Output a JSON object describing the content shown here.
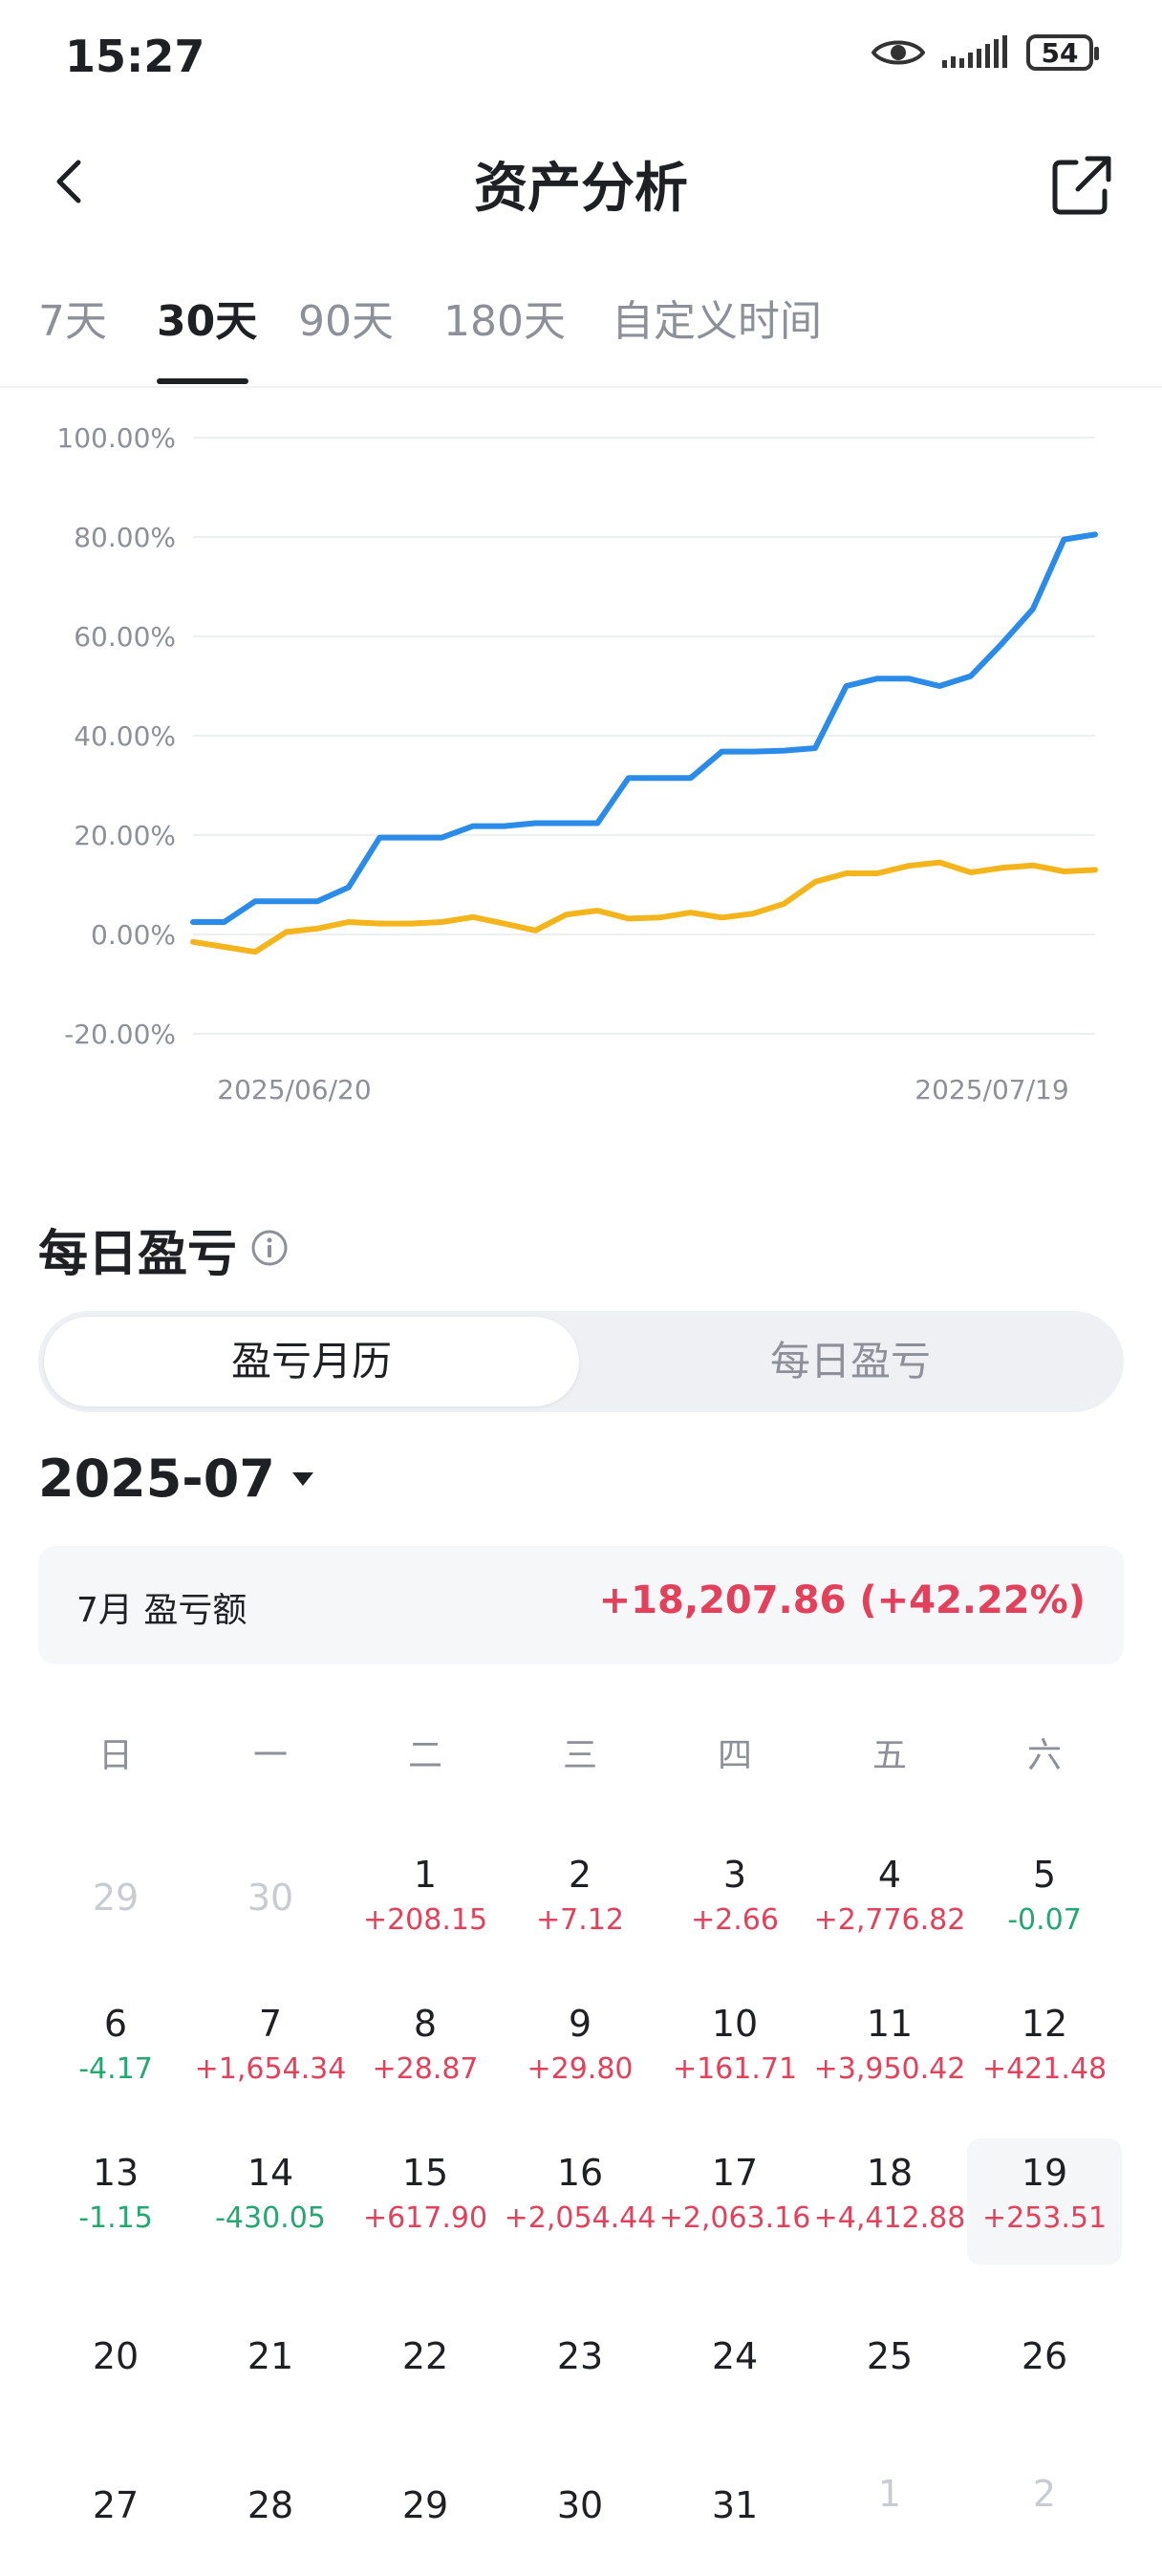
{
  "status": {
    "time": "15:27",
    "battery": "54"
  },
  "header": {
    "title": "资产分析"
  },
  "tabs": [
    {
      "label": "7天",
      "active": false
    },
    {
      "label": "30天",
      "active": true
    },
    {
      "label": "90天",
      "active": false
    },
    {
      "label": "180天",
      "active": false
    },
    {
      "label": "自定义时间",
      "active": false
    }
  ],
  "chart_data": {
    "type": "line",
    "y_ticks": [
      "100.00%",
      "80.00%",
      "60.00%",
      "40.00%",
      "20.00%",
      "0.00%",
      "-20.00%"
    ],
    "ylim": [
      -20,
      100
    ],
    "x_tick_labels": [
      "2025/06/20",
      "2025/07/19"
    ],
    "grid": true,
    "series": [
      {
        "color": "#2b8be8",
        "values": [
          2.5,
          2.5,
          6.7,
          6.7,
          6.7,
          9.5,
          19.5,
          19.5,
          19.5,
          21.8,
          21.8,
          22.4,
          22.4,
          22.4,
          31.5,
          31.5,
          31.5,
          36.8,
          36.8,
          37.0,
          37.5,
          50.0,
          51.5,
          51.5,
          50.0,
          52.0,
          58.5,
          65.5,
          79.5,
          80.5
        ]
      },
      {
        "color": "#f4b51c",
        "values": [
          -1.5,
          -2.5,
          -3.5,
          0.5,
          1.2,
          2.5,
          2.2,
          2.2,
          2.5,
          3.5,
          2.2,
          0.8,
          4.0,
          4.8,
          3.2,
          3.4,
          4.4,
          3.4,
          4.2,
          6.2,
          10.6,
          12.3,
          12.3,
          13.8,
          14.5,
          12.5,
          13.4,
          13.9,
          12.7,
          13.0
        ]
      }
    ]
  },
  "daily_pnl": {
    "title": "每日盈亏",
    "segments": [
      "盈亏月历",
      "每日盈亏"
    ],
    "month": "2025-07",
    "summary_label": "7月 盈亏额",
    "summary_value": "+18,207.86 (+42.22%)"
  },
  "calendar": {
    "weekdays": [
      "日",
      "一",
      "二",
      "三",
      "四",
      "五",
      "六"
    ],
    "weeks": [
      [
        {
          "day": "29",
          "value": "",
          "dim": true
        },
        {
          "day": "30",
          "value": "",
          "dim": true
        },
        {
          "day": "1",
          "value": "+208.15"
        },
        {
          "day": "2",
          "value": "+7.12"
        },
        {
          "day": "3",
          "value": "+2.66"
        },
        {
          "day": "4",
          "value": "+2,776.82"
        },
        {
          "day": "5",
          "value": "-0.07"
        }
      ],
      [
        {
          "day": "6",
          "value": "-4.17"
        },
        {
          "day": "7",
          "value": "+1,654.34"
        },
        {
          "day": "8",
          "value": "+28.87"
        },
        {
          "day": "9",
          "value": "+29.80"
        },
        {
          "day": "10",
          "value": "+161.71"
        },
        {
          "day": "11",
          "value": "+3,950.42"
        },
        {
          "day": "12",
          "value": "+421.48"
        }
      ],
      [
        {
          "day": "13",
          "value": "-1.15"
        },
        {
          "day": "14",
          "value": "-430.05"
        },
        {
          "day": "15",
          "value": "+617.90"
        },
        {
          "day": "16",
          "value": "+2,054.44"
        },
        {
          "day": "17",
          "value": "+2,063.16"
        },
        {
          "day": "18",
          "value": "+4,412.88"
        },
        {
          "day": "19",
          "value": "+253.51",
          "today": true
        }
      ],
      [
        {
          "day": "20",
          "value": ""
        },
        {
          "day": "21",
          "value": ""
        },
        {
          "day": "22",
          "value": ""
        },
        {
          "day": "23",
          "value": ""
        },
        {
          "day": "24",
          "value": ""
        },
        {
          "day": "25",
          "value": ""
        },
        {
          "day": "26",
          "value": ""
        }
      ],
      [
        {
          "day": "27",
          "value": ""
        },
        {
          "day": "28",
          "value": ""
        },
        {
          "day": "29",
          "value": ""
        },
        {
          "day": "30",
          "value": ""
        },
        {
          "day": "31",
          "value": ""
        },
        {
          "day": "1",
          "value": "",
          "dim": true
        },
        {
          "day": "2",
          "value": "",
          "dim": true
        }
      ]
    ]
  }
}
